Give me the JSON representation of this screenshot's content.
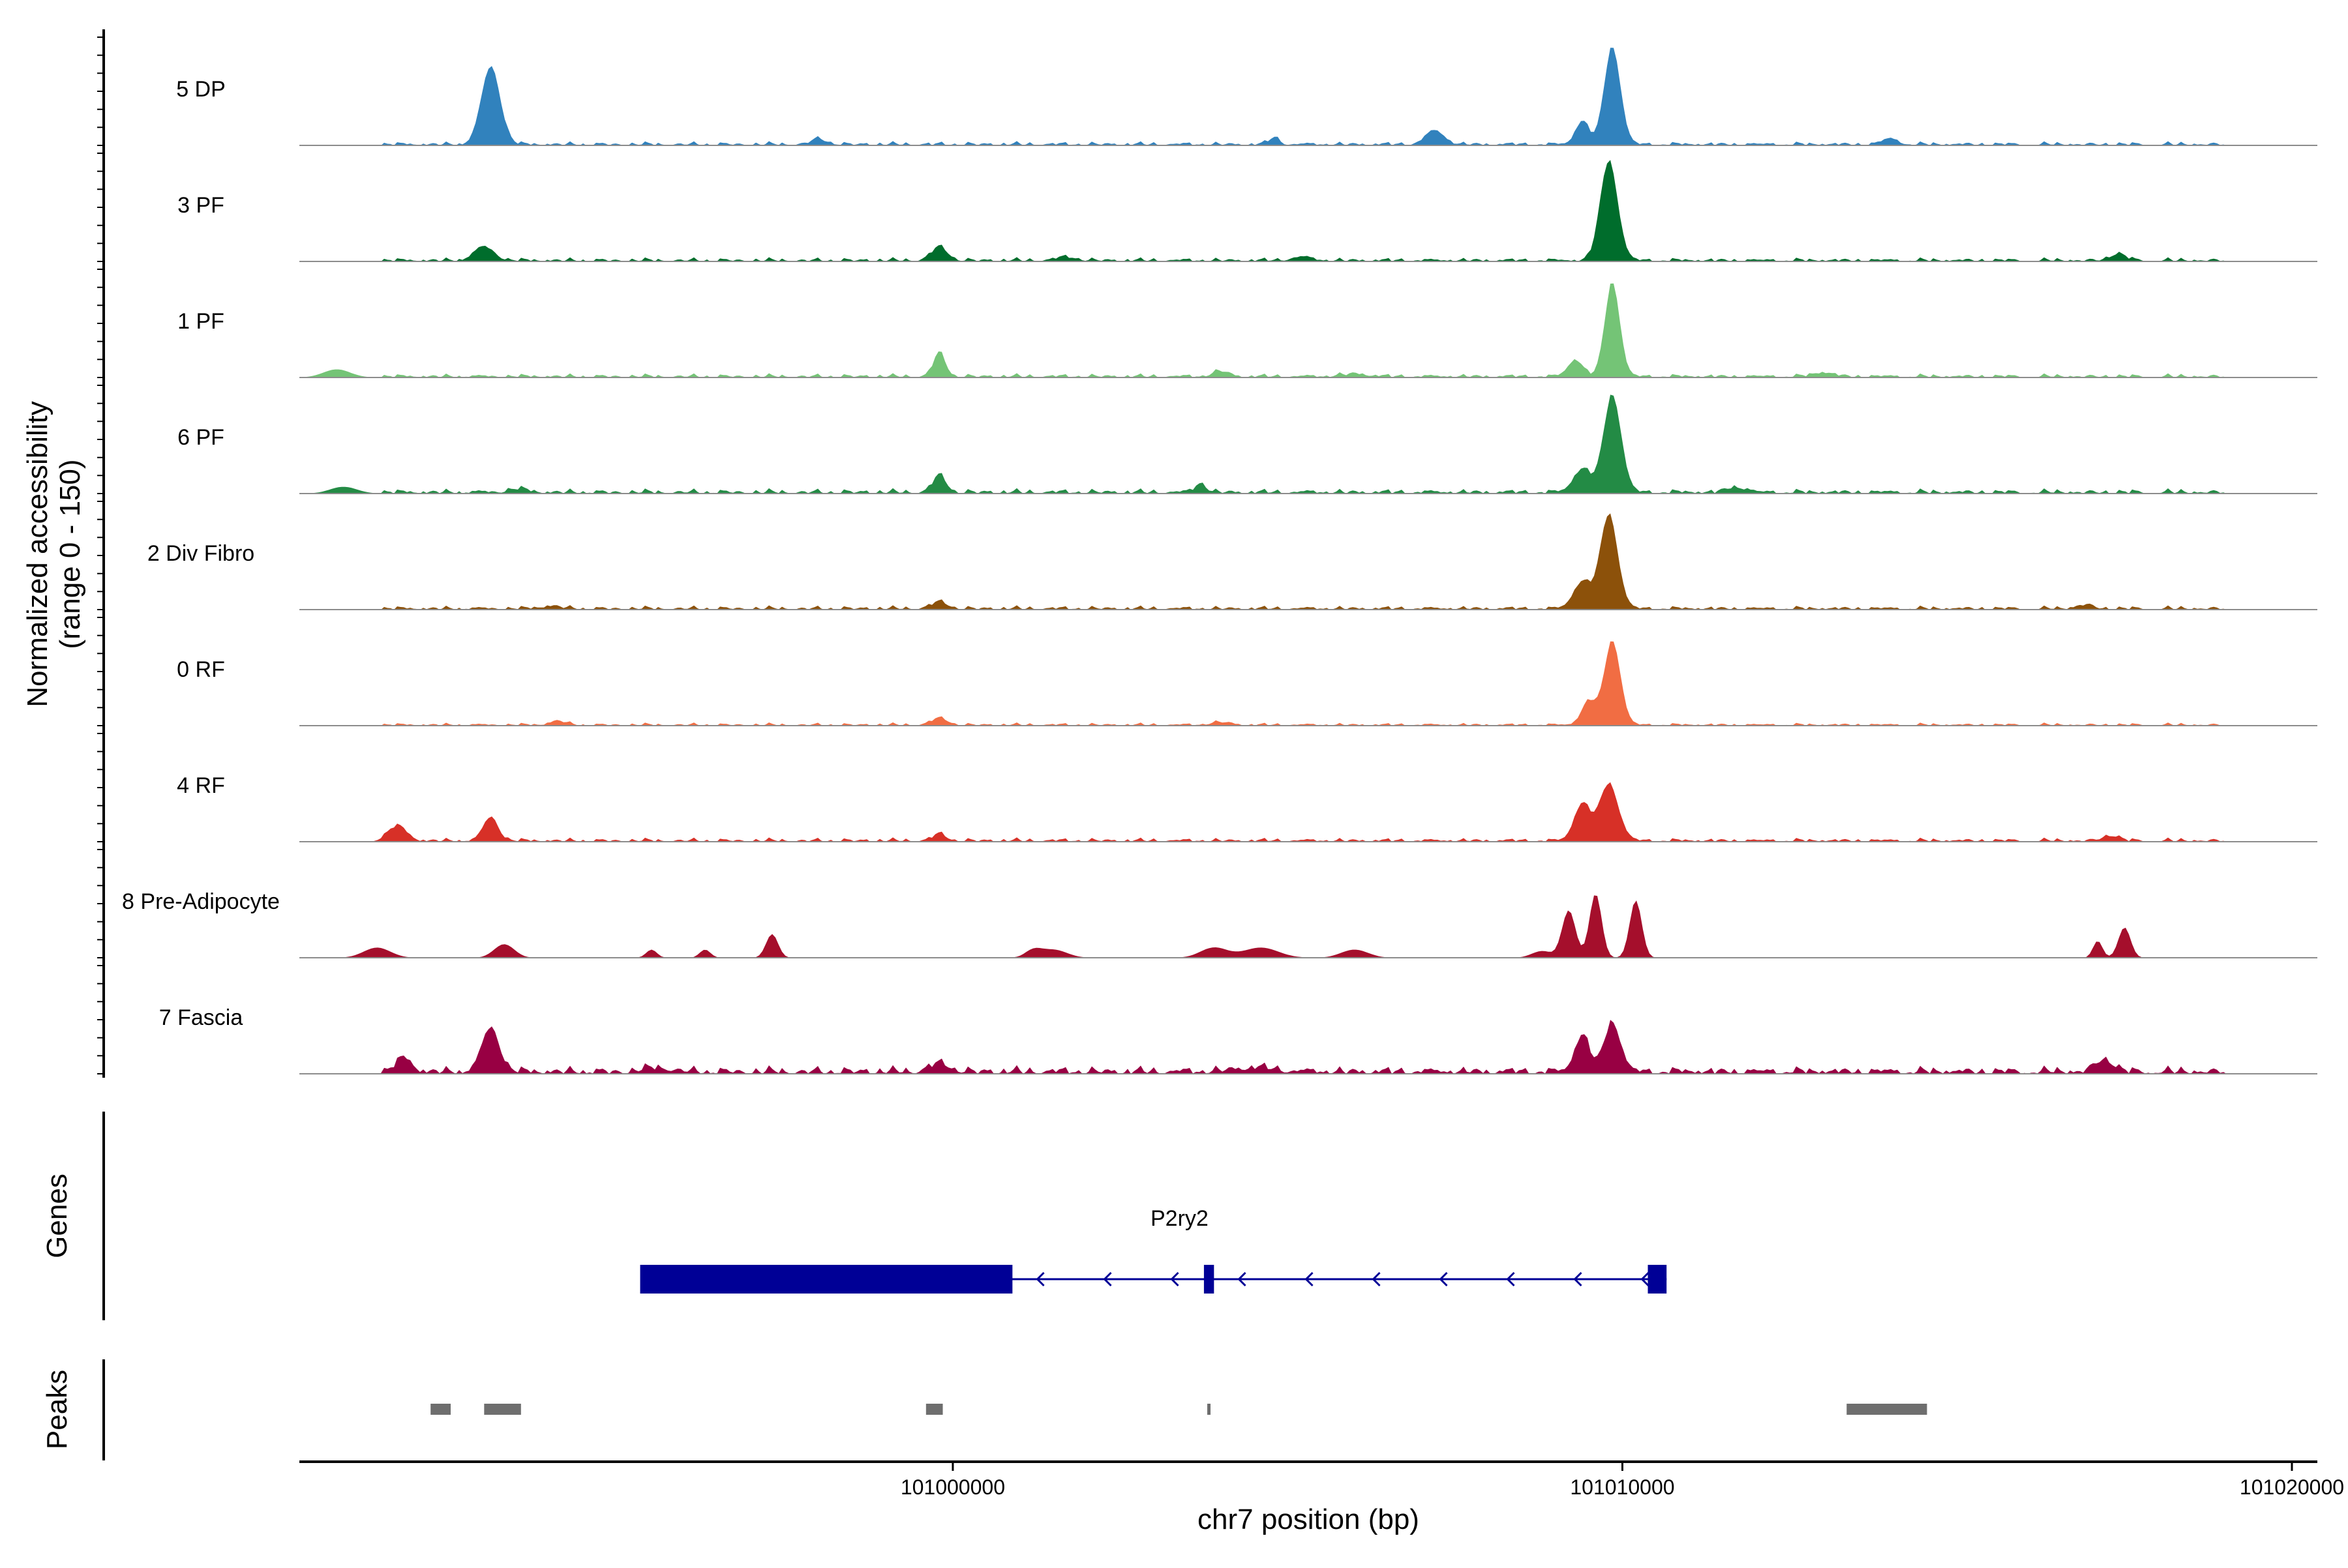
{
  "chart_data": {
    "type": "area",
    "subtype": "genome-coverage-tracks",
    "ylabel_line1": "Normalized accessibility",
    "ylabel_line2": "(range 0 - 150)",
    "ylim": [
      0,
      150
    ],
    "xlabel": "chr7 position (bp)",
    "xlim": [
      100990240,
      101020380
    ],
    "x_ticks": [
      {
        "value": 101000000,
        "label": "101000000"
      },
      {
        "value": 101010000,
        "label": "101010000"
      },
      {
        "value": 101020000,
        "label": "101020000"
      }
    ],
    "series": [
      {
        "name": "5 DP",
        "color": "#3182bd",
        "peaks": [
          [
            100993100,
            115,
            140
          ],
          [
            101009850,
            145,
            120
          ],
          [
            101014000,
            8,
            120
          ],
          [
            101007200,
            20,
            140
          ],
          [
            101009400,
            35,
            100
          ],
          [
            101004800,
            10,
            80
          ],
          [
            100998000,
            8,
            120
          ]
        ],
        "noise": [
          100991400,
          101019000,
          4
        ]
      },
      {
        "name": "3 PF",
        "color": "#006d2c",
        "peaks": [
          [
            100993000,
            20,
            150
          ],
          [
            101009800,
            148,
            130
          ],
          [
            100999800,
            20,
            120
          ],
          [
            101017400,
            10,
            120
          ],
          [
            101001700,
            5,
            150
          ],
          [
            101005200,
            5,
            150
          ]
        ],
        "noise": [
          100991400,
          101019000,
          4
        ]
      },
      {
        "name": "1 PF",
        "color": "#74c476",
        "peaks": [
          [
            101009850,
            140,
            110
          ],
          [
            100999800,
            35,
            90
          ],
          [
            100990800,
            12,
            200
          ],
          [
            101009300,
            25,
            110
          ],
          [
            101004000,
            8,
            120
          ],
          [
            101013000,
            6,
            150
          ],
          [
            101006000,
            4,
            200
          ]
        ],
        "noise": [
          100991400,
          101019000,
          4
        ]
      },
      {
        "name": "6 PF",
        "color": "#238b45",
        "peaks": [
          [
            101009850,
            145,
            130
          ],
          [
            100999800,
            25,
            100
          ],
          [
            101003700,
            14,
            80
          ],
          [
            100990900,
            10,
            200
          ],
          [
            101011700,
            8,
            140
          ],
          [
            101009400,
            35,
            130
          ],
          [
            100993500,
            5,
            150
          ]
        ],
        "noise": [
          100991400,
          101019000,
          5
        ]
      },
      {
        "name": "2 Div Fibro",
        "color": "#8c510a",
        "peaks": [
          [
            101009800,
            140,
            130
          ],
          [
            101009400,
            40,
            130
          ],
          [
            100999800,
            10,
            120
          ],
          [
            101016900,
            6,
            120
          ],
          [
            100994000,
            4,
            150
          ]
        ],
        "noise": [
          100991400,
          101019000,
          4
        ]
      },
      {
        "name": "0 RF",
        "color": "#f16d43",
        "peaks": [
          [
            101009850,
            125,
            120
          ],
          [
            101009500,
            35,
            110
          ],
          [
            100999800,
            10,
            120
          ],
          [
            100994100,
            6,
            120
          ],
          [
            101004000,
            4,
            150
          ]
        ],
        "noise": [
          100991400,
          101019000,
          3
        ]
      },
      {
        "name": "4 RF",
        "color": "#d73027",
        "peaks": [
          [
            101009800,
            85,
            140
          ],
          [
            101009400,
            55,
            120
          ],
          [
            100993100,
            35,
            110
          ],
          [
            100991700,
            22,
            140
          ],
          [
            100999800,
            10,
            100
          ],
          [
            101017300,
            8,
            120
          ]
        ],
        "noise": [
          100991400,
          101019000,
          4
        ]
      },
      {
        "name": "8 Pre-Adipocyte",
        "color": "#a50f2c",
        "peaks": [
          [
            101009600,
            95,
            90
          ],
          [
            101010200,
            85,
            90
          ],
          [
            101009200,
            70,
            100
          ],
          [
            101017500,
            45,
            90
          ],
          [
            101017100,
            25,
            70
          ],
          [
            100997300,
            35,
            90
          ],
          [
            100993300,
            20,
            150
          ],
          [
            101003900,
            15,
            200
          ],
          [
            101004600,
            15,
            260
          ],
          [
            101006000,
            12,
            200
          ],
          [
            100991400,
            15,
            200
          ],
          [
            100996300,
            12,
            80
          ],
          [
            100995500,
            12,
            80
          ],
          [
            101001500,
            12,
            200
          ],
          [
            101008800,
            10,
            150
          ],
          [
            101001200,
            10,
            120
          ]
        ],
        "noise": [
          100991400,
          101019000,
          0
        ]
      },
      {
        "name": "7 Fascia",
        "color": "#980043",
        "peaks": [
          [
            100993100,
            65,
            130
          ],
          [
            101009850,
            75,
            120
          ],
          [
            101009400,
            55,
            110
          ],
          [
            100991800,
            20,
            120
          ],
          [
            100999800,
            12,
            150
          ],
          [
            101017200,
            18,
            140
          ],
          [
            100995600,
            6,
            200
          ],
          [
            101004500,
            6,
            300
          ]
        ],
        "noise": [
          100991400,
          101019000,
          8
        ]
      }
    ],
    "genes": [
      {
        "name": "P2ry2",
        "color": "#000096",
        "strand": "-",
        "start": 100995330,
        "end": 101010660,
        "exons": [
          [
            100995330,
            101000890
          ],
          [
            101003750,
            101003900
          ],
          [
            101010380,
            101010660
          ]
        ],
        "cds": [
          [
            100995330,
            100997850
          ]
        ]
      }
    ],
    "genes_label": "Genes",
    "peaks_label": "Peaks",
    "peak_regions": [
      {
        "start": 100992200,
        "end": 100992500
      },
      {
        "start": 100993000,
        "end": 100993550
      },
      {
        "start": 100999600,
        "end": 100999850
      },
      {
        "start": 101003800,
        "end": 101003820
      },
      {
        "start": 101013350,
        "end": 101014550
      }
    ],
    "peak_color": "#6e6e6e",
    "grid": false
  }
}
